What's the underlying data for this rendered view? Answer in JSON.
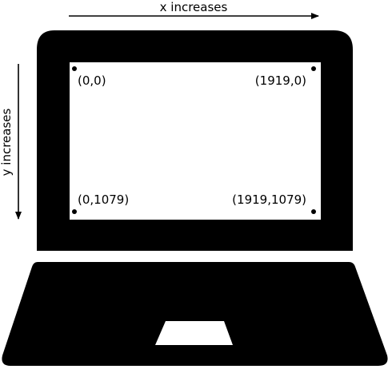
{
  "colors": {
    "body": "#000000",
    "screen": "#ffffff",
    "background": "#ffffff"
  },
  "labels": {
    "x_axis": "x increases",
    "y_axis": "y increases"
  },
  "corners": {
    "top_left": "(0,0)",
    "top_right": "(1919,0)",
    "bottom_left": "(0,1079)",
    "bottom_right": "(1919,1079)"
  }
}
